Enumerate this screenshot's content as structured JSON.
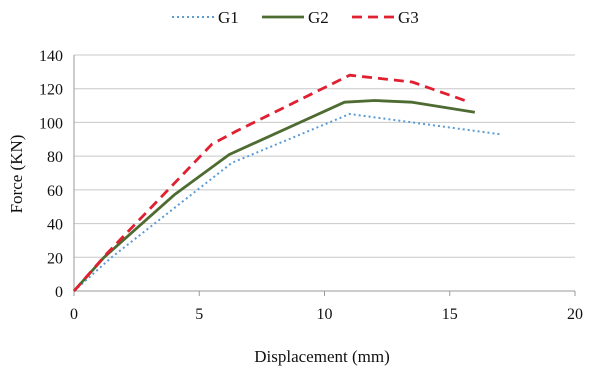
{
  "chart_data": {
    "type": "line",
    "title": "",
    "xlabel": "Displacement (mm)",
    "ylabel": "Force (KN)",
    "xlim": [
      0,
      20
    ],
    "ylim": [
      0,
      140
    ],
    "x_ticks": [
      0,
      5,
      10,
      15,
      20
    ],
    "y_ticks": [
      0,
      20,
      40,
      60,
      80,
      100,
      120,
      140
    ],
    "x_tick_labels": [
      "0",
      "5",
      "10",
      "15",
      "20"
    ],
    "y_tick_labels": [
      "0",
      "20",
      "40",
      "60",
      "80",
      "100",
      "120",
      "140"
    ],
    "grid": "horizontal",
    "legend_position": "top",
    "series": [
      {
        "name": "G1",
        "style": "dotted",
        "color": "#5b9bd5",
        "x": [
          0,
          1.5,
          6.3,
          11.0,
          13.0,
          15.0,
          17.0
        ],
        "y": [
          0,
          20,
          76,
          105,
          101,
          97,
          93
        ]
      },
      {
        "name": "G2",
        "style": "solid",
        "color": "#4e6b31",
        "x": [
          0,
          1.2,
          4.0,
          6.2,
          10.8,
          12.0,
          13.5,
          16.0
        ],
        "y": [
          0,
          20,
          57,
          81,
          112,
          113,
          112,
          106
        ]
      },
      {
        "name": "G3",
        "style": "dashed",
        "color": "#e02030",
        "x": [
          0,
          1.3,
          5.5,
          6.5,
          11.0,
          13.5,
          15.8
        ],
        "y": [
          0,
          22,
          87,
          95,
          128,
          124,
          112
        ]
      }
    ]
  }
}
